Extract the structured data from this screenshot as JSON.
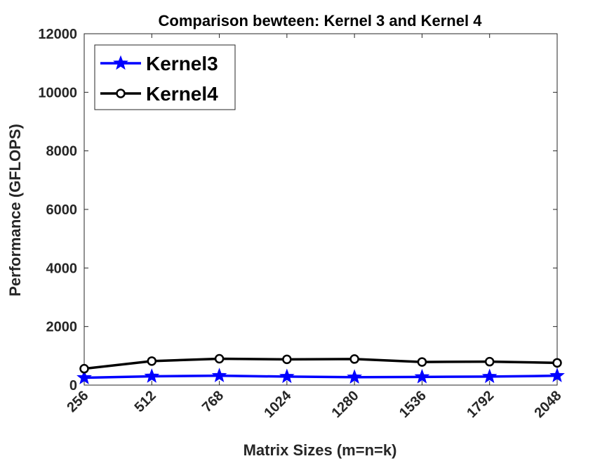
{
  "chart_data": {
    "type": "line",
    "title": "Comparison bewteen: Kernel 3 and Kernel 4",
    "xlabel": "Matrix Sizes (m=n=k)",
    "ylabel": "Performance (GFLOPS)",
    "categories": [
      "256",
      "512",
      "768",
      "1024",
      "1280",
      "1536",
      "1792",
      "2048"
    ],
    "ylim": [
      0,
      12000
    ],
    "yticks": [
      "0",
      "2000",
      "4000",
      "6000",
      "8000",
      "10000",
      "12000"
    ],
    "grid": false,
    "legend_position": "top-left",
    "series": [
      {
        "name": "Kernel3",
        "color": "#0000ff",
        "marker": "star",
        "values": [
          250,
          300,
          320,
          290,
          270,
          280,
          290,
          320
        ]
      },
      {
        "name": "Kernel4",
        "color": "#000000",
        "marker": "circle",
        "values": [
          560,
          820,
          900,
          880,
          890,
          790,
          800,
          760
        ]
      }
    ]
  }
}
